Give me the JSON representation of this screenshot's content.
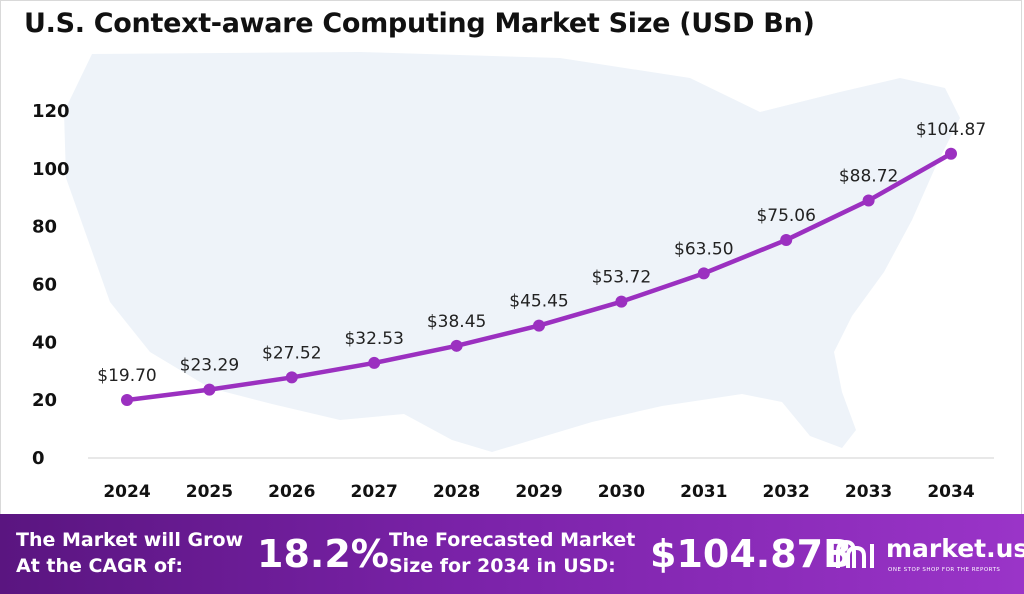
{
  "title": "U.S. Context-aware Computing Market Size (USD Bn)",
  "chart_data": {
    "type": "line",
    "title": "U.S. Context-aware Computing Market Size (USD Bn)",
    "xlabel": "",
    "ylabel": "",
    "categories": [
      "2024",
      "2025",
      "2026",
      "2027",
      "2028",
      "2029",
      "2030",
      "2031",
      "2032",
      "2033",
      "2034"
    ],
    "series": [
      {
        "values": [
          19.7,
          23.29,
          27.52,
          32.53,
          38.45,
          45.45,
          53.72,
          63.5,
          75.06,
          88.72,
          104.87
        ],
        "labels": [
          "$19.70",
          "$23.29",
          "$27.52",
          "$32.53",
          "$38.45",
          "$45.45",
          "$53.72",
          "$63.50",
          "$75.06",
          "$88.72",
          "$104.87"
        ]
      }
    ],
    "ylim": [
      0,
      120
    ],
    "yticks": [
      "0",
      "20",
      "40",
      "60",
      "80",
      "100",
      "120"
    ],
    "grid": false,
    "line_color": "#9b30c0",
    "background": "U.S. map silhouette"
  },
  "footer": {
    "cagr_line1": "The Market will Grow",
    "cagr_line2": "At the CAGR of:",
    "cagr_value": "18.2%",
    "forecast_line1": "The Forecasted Market",
    "forecast_line2": "Size for 2034 in USD:",
    "forecast_value": "$104.87B",
    "brand_name": "market.us",
    "brand_tagline": "ONE STOP SHOP FOR THE REPORTS"
  },
  "colors": {
    "footer_start": "#5a1580",
    "footer_end": "#9a34c8",
    "map": "#eef3f9"
  }
}
